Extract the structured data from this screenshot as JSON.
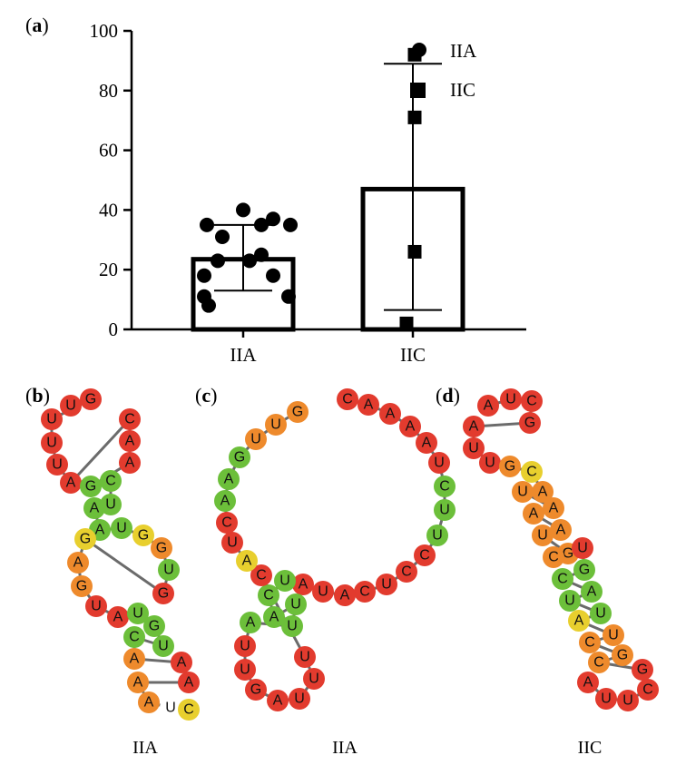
{
  "chart_data": {
    "type": "bar",
    "panel_label": "a",
    "categories": [
      "IIA",
      "IIC"
    ],
    "values": [
      23.5,
      47
    ],
    "error_low": [
      13,
      6.5
    ],
    "error_high": [
      35,
      89
    ],
    "ylim": [
      0,
      100
    ],
    "yticks": [
      "0",
      "20",
      "40",
      "60",
      "80",
      "100"
    ],
    "points": {
      "IIA": [
        40,
        35,
        35,
        37,
        35,
        31,
        25,
        23,
        23,
        18,
        18,
        11,
        11,
        8
      ],
      "IIC": [
        92,
        71,
        26,
        2
      ]
    },
    "legend": [
      {
        "label": "IIA",
        "marker": "circle"
      },
      {
        "label": "IIC",
        "marker": "square"
      }
    ]
  },
  "structures": [
    {
      "panel_label": "b",
      "caption": "IIA",
      "letters": [
        "U",
        "G",
        "C",
        "A",
        "A",
        "C",
        "U",
        "U",
        "G",
        "G",
        "U",
        "G",
        "A",
        "A",
        "A",
        "C",
        "U",
        "A",
        "U",
        "G",
        "A",
        "A",
        "C",
        "U",
        "U",
        "A",
        "U",
        "U",
        "U",
        "A",
        "A",
        "U",
        "A",
        "G",
        "G"
      ]
    },
    {
      "panel_label": "c",
      "caption": "IIA",
      "letters": [
        "C",
        "A",
        "A",
        "A",
        "A",
        "U",
        "C",
        "U",
        "U",
        "C",
        "C",
        "U",
        "C",
        "A",
        "U",
        "A",
        "U",
        "A",
        "C",
        "G",
        "U",
        "U",
        "A",
        "A",
        "G",
        "U",
        "U",
        "C",
        "A",
        "U",
        "A",
        "C",
        "G",
        "A",
        "A",
        "U",
        "U",
        "G"
      ]
    },
    {
      "panel_label": "d",
      "caption": "IIC",
      "letters": [
        "A",
        "U",
        "C",
        "G",
        "G",
        "C",
        "A",
        "A",
        "A",
        "G",
        "U",
        "A",
        "G",
        "A",
        "U",
        "U",
        "G",
        "G",
        "C",
        "U",
        "U",
        "A",
        "A",
        "C",
        "U",
        "C",
        "U",
        "C",
        "U",
        "U",
        "U",
        "G",
        "A",
        "U"
      ]
    }
  ],
  "colors": {
    "red": "#e23b2e",
    "orange": "#ee8a2c",
    "yellow": "#e8cf2e",
    "green": "#6cbf3a",
    "backbone": "#6b6b6b"
  }
}
